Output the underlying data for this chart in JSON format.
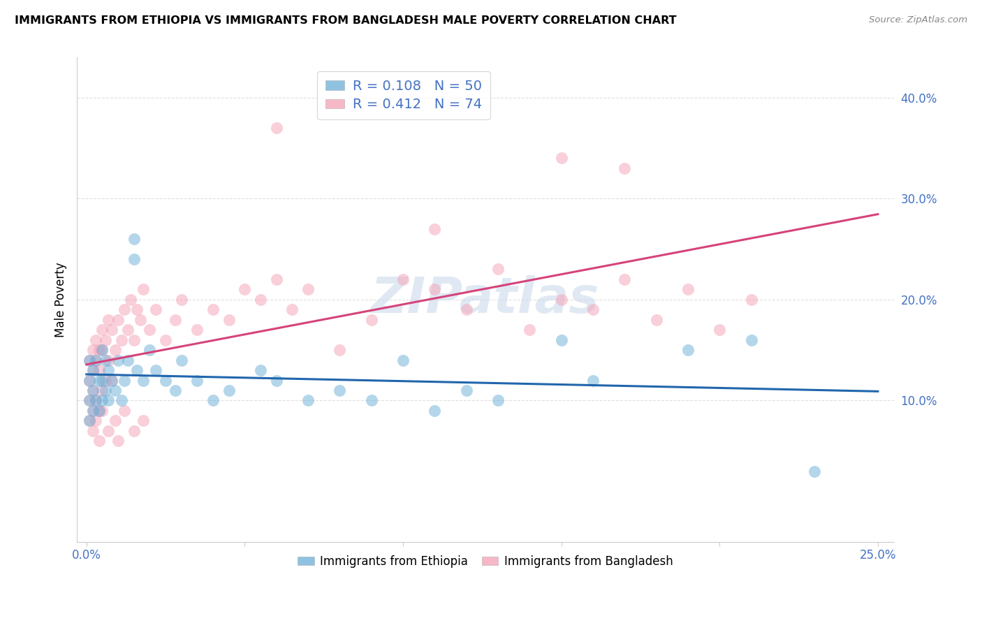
{
  "title": "IMMIGRANTS FROM ETHIOPIA VS IMMIGRANTS FROM BANGLADESH MALE POVERTY CORRELATION CHART",
  "source": "Source: ZipAtlas.com",
  "ylabel": "Male Poverty",
  "ylabel_right_ticks": [
    "10.0%",
    "20.0%",
    "30.0%",
    "40.0%"
  ],
  "ylabel_right_vals": [
    0.1,
    0.2,
    0.3,
    0.4
  ],
  "xlim": [
    -0.003,
    0.255
  ],
  "ylim": [
    -0.04,
    0.44
  ],
  "legend_ethiopia_r": "R = 0.108",
  "legend_ethiopia_n": "N = 50",
  "legend_bangladesh_r": "R = 0.412",
  "legend_bangladesh_n": "N = 74",
  "color_ethiopia": "#6aaed6",
  "color_bangladesh": "#f4a0b5",
  "trend_color_ethiopia": "#2166ac",
  "trend_color_bangladesh": "#d6437a",
  "background_color": "#ffffff",
  "watermark": "ZIPatlas",
  "ethiopia_x": [
    0.001,
    0.001,
    0.001,
    0.001,
    0.002,
    0.002,
    0.002,
    0.003,
    0.003,
    0.004,
    0.004,
    0.005,
    0.005,
    0.005,
    0.006,
    0.006,
    0.007,
    0.007,
    0.008,
    0.009,
    0.01,
    0.011,
    0.012,
    0.013,
    0.015,
    0.015,
    0.016,
    0.018,
    0.02,
    0.022,
    0.025,
    0.028,
    0.03,
    0.035,
    0.04,
    0.045,
    0.055,
    0.06,
    0.07,
    0.08,
    0.09,
    0.1,
    0.11,
    0.12,
    0.13,
    0.15,
    0.16,
    0.19,
    0.21,
    0.23
  ],
  "ethiopia_y": [
    0.14,
    0.12,
    0.1,
    0.08,
    0.13,
    0.11,
    0.09,
    0.14,
    0.1,
    0.12,
    0.09,
    0.15,
    0.12,
    0.1,
    0.14,
    0.11,
    0.13,
    0.1,
    0.12,
    0.11,
    0.14,
    0.1,
    0.12,
    0.14,
    0.26,
    0.24,
    0.13,
    0.12,
    0.15,
    0.13,
    0.12,
    0.11,
    0.14,
    0.12,
    0.1,
    0.11,
    0.13,
    0.12,
    0.1,
    0.11,
    0.1,
    0.14,
    0.09,
    0.11,
    0.1,
    0.16,
    0.12,
    0.15,
    0.16,
    0.03
  ],
  "bangladesh_x": [
    0.001,
    0.001,
    0.001,
    0.001,
    0.002,
    0.002,
    0.002,
    0.002,
    0.003,
    0.003,
    0.003,
    0.004,
    0.004,
    0.004,
    0.005,
    0.005,
    0.005,
    0.006,
    0.006,
    0.007,
    0.007,
    0.008,
    0.008,
    0.009,
    0.01,
    0.011,
    0.012,
    0.013,
    0.014,
    0.015,
    0.016,
    0.017,
    0.018,
    0.02,
    0.022,
    0.025,
    0.028,
    0.03,
    0.035,
    0.04,
    0.045,
    0.05,
    0.055,
    0.06,
    0.065,
    0.07,
    0.08,
    0.09,
    0.1,
    0.11,
    0.12,
    0.13,
    0.14,
    0.15,
    0.16,
    0.17,
    0.18,
    0.19,
    0.2,
    0.21,
    0.002,
    0.003,
    0.004,
    0.005,
    0.007,
    0.009,
    0.01,
    0.012,
    0.015,
    0.018,
    0.06,
    0.11,
    0.15,
    0.17
  ],
  "bangladesh_y": [
    0.14,
    0.12,
    0.1,
    0.08,
    0.15,
    0.13,
    0.11,
    0.09,
    0.16,
    0.14,
    0.1,
    0.15,
    0.13,
    0.09,
    0.17,
    0.15,
    0.11,
    0.16,
    0.12,
    0.18,
    0.14,
    0.17,
    0.12,
    0.15,
    0.18,
    0.16,
    0.19,
    0.17,
    0.2,
    0.16,
    0.19,
    0.18,
    0.21,
    0.17,
    0.19,
    0.16,
    0.18,
    0.2,
    0.17,
    0.19,
    0.18,
    0.21,
    0.2,
    0.22,
    0.19,
    0.21,
    0.15,
    0.18,
    0.22,
    0.21,
    0.19,
    0.23,
    0.17,
    0.2,
    0.19,
    0.22,
    0.18,
    0.21,
    0.17,
    0.2,
    0.07,
    0.08,
    0.06,
    0.09,
    0.07,
    0.08,
    0.06,
    0.09,
    0.07,
    0.08,
    0.37,
    0.27,
    0.34,
    0.33
  ]
}
